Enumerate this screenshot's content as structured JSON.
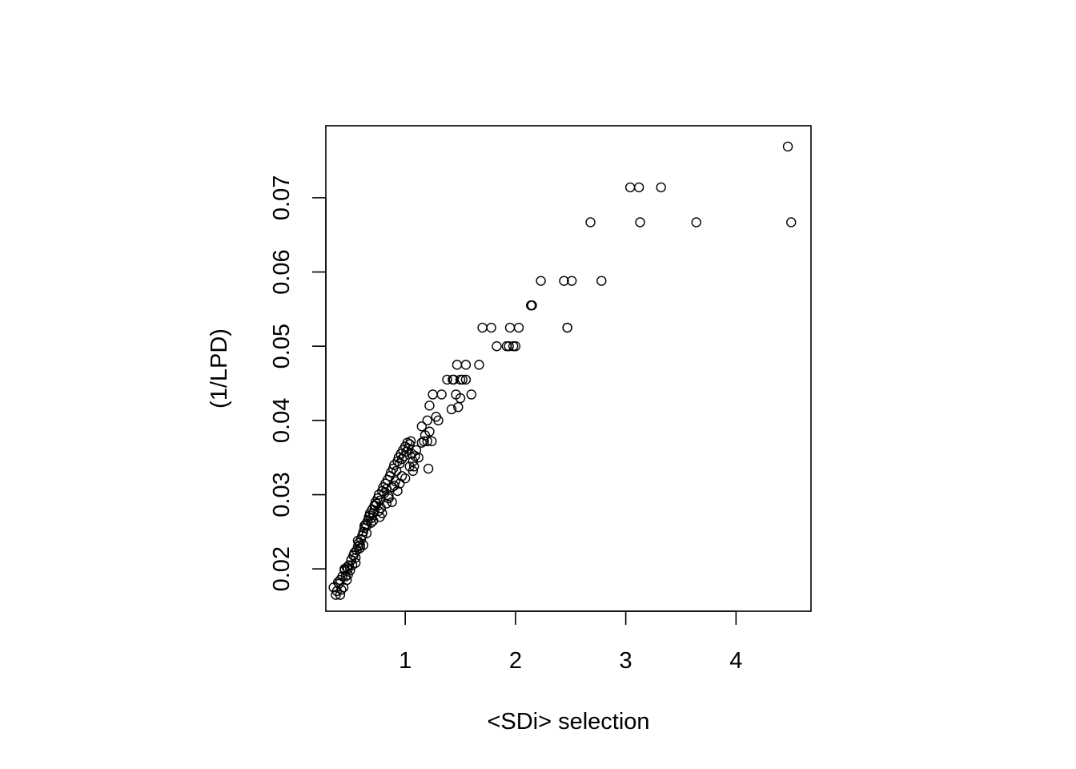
{
  "chart_data": {
    "type": "scatter",
    "title": "",
    "xlabel": "<SDi> selection",
    "ylabel": "(1/LPD)",
    "xlim": [
      0.28,
      4.68
    ],
    "ylim": [
      0.0143,
      0.0797
    ],
    "xticks": [
      1,
      2,
      3,
      4
    ],
    "xtick_labels": [
      "1",
      "2",
      "3",
      "4"
    ],
    "yticks": [
      0.02,
      0.03,
      0.04,
      0.05,
      0.06,
      0.07
    ],
    "ytick_labels": [
      "0.02",
      "0.03",
      "0.04",
      "0.05",
      "0.06",
      "0.07"
    ],
    "grid": false,
    "legend": "none",
    "marker": "open-circle",
    "series": [
      {
        "x": [
          0.35,
          0.37,
          0.38,
          0.4,
          0.41,
          0.43,
          0.44,
          0.45,
          0.46,
          0.47,
          0.48,
          0.49,
          0.5,
          0.51,
          0.52,
          0.53,
          0.54,
          0.55,
          0.56,
          0.57,
          0.58,
          0.59,
          0.6,
          0.61,
          0.62,
          0.63,
          0.64,
          0.65,
          0.66,
          0.67,
          0.68,
          0.69,
          0.7,
          0.71,
          0.72,
          0.73,
          0.74,
          0.75,
          0.76,
          0.77,
          0.78,
          0.79,
          0.8,
          0.81,
          0.82,
          0.83,
          0.84,
          0.85,
          0.86,
          0.87,
          0.88,
          0.89,
          0.9,
          0.91,
          0.92,
          0.93,
          0.94,
          0.95,
          0.96,
          0.97,
          0.98,
          0.99,
          1.0,
          1.01,
          1.02,
          1.03,
          1.04,
          1.05,
          1.06,
          1.07,
          1.08,
          1.09,
          1.1,
          0.42,
          0.48,
          0.55,
          0.62,
          0.69,
          0.76,
          0.83,
          0.9,
          0.97,
          1.04,
          0.39,
          0.45,
          0.51,
          0.57,
          0.63,
          0.68,
          0.73,
          0.79,
          0.85,
          0.93,
          1.0,
          1.07,
          0.41,
          0.47,
          0.53,
          0.59,
          0.65,
          0.71,
          0.77,
          0.88,
          0.95,
          1.12,
          1.15,
          1.18,
          1.2,
          1.22,
          1.25,
          1.15,
          1.2,
          1.28,
          1.33,
          1.38,
          1.43,
          1.47,
          1.5,
          1.55,
          1.6,
          1.67,
          1.42,
          1.46,
          1.5,
          1.55,
          1.44,
          1.48,
          1.52,
          1.21,
          1.24,
          1.3,
          1.17,
          1.22,
          1.7,
          1.78,
          1.83,
          1.92,
          1.95,
          1.98,
          2.0,
          2.03,
          1.94,
          2.14,
          2.15,
          2.23,
          2.44,
          2.47,
          2.51,
          2.78,
          2.47,
          2.68,
          3.04,
          3.12,
          3.32,
          3.13,
          3.64,
          4.47,
          4.5
        ],
        "y": [
          0.0175,
          0.0165,
          0.017,
          0.018,
          0.0165,
          0.019,
          0.0175,
          0.02,
          0.019,
          0.0185,
          0.02,
          0.0205,
          0.0198,
          0.0212,
          0.0205,
          0.0218,
          0.0222,
          0.0215,
          0.0225,
          0.023,
          0.0235,
          0.0228,
          0.024,
          0.0245,
          0.025,
          0.0255,
          0.026,
          0.0258,
          0.0265,
          0.027,
          0.0275,
          0.0268,
          0.028,
          0.0275,
          0.0285,
          0.029,
          0.0288,
          0.0295,
          0.03,
          0.0292,
          0.0282,
          0.0305,
          0.031,
          0.0302,
          0.0315,
          0.0308,
          0.032,
          0.0298,
          0.0325,
          0.033,
          0.031,
          0.0335,
          0.034,
          0.0318,
          0.0332,
          0.0345,
          0.035,
          0.0342,
          0.0355,
          0.0348,
          0.036,
          0.0352,
          0.0365,
          0.0358,
          0.037,
          0.0362,
          0.0368,
          0.0372,
          0.0355,
          0.0345,
          0.0338,
          0.0352,
          0.036,
          0.0172,
          0.0192,
          0.0208,
          0.0232,
          0.0262,
          0.0278,
          0.0288,
          0.0312,
          0.0325,
          0.0338,
          0.0182,
          0.0198,
          0.0212,
          0.0238,
          0.0258,
          0.0272,
          0.0285,
          0.0275,
          0.0295,
          0.0305,
          0.0322,
          0.0332,
          0.0185,
          0.0202,
          0.0218,
          0.0232,
          0.0248,
          0.0265,
          0.027,
          0.029,
          0.0315,
          0.035,
          0.037,
          0.038,
          0.04,
          0.042,
          0.0435,
          0.0392,
          0.0372,
          0.0405,
          0.0435,
          0.0455,
          0.0455,
          0.0475,
          0.043,
          0.0455,
          0.0435,
          0.0475,
          0.0415,
          0.0435,
          0.0455,
          0.0475,
          0.0455,
          0.0418,
          0.0455,
          0.0335,
          0.0372,
          0.04,
          0.0372,
          0.0385,
          0.0525,
          0.0525,
          0.05,
          0.05,
          0.0525,
          0.05,
          0.05,
          0.0525,
          0.05,
          0.0555,
          0.0555,
          0.0588,
          0.0588,
          0.0525,
          0.0588,
          0.0588,
          0.0525,
          0.0667,
          0.0714,
          0.0714,
          0.0714,
          0.0667,
          0.0667,
          0.0769,
          0.0667
        ]
      }
    ]
  }
}
